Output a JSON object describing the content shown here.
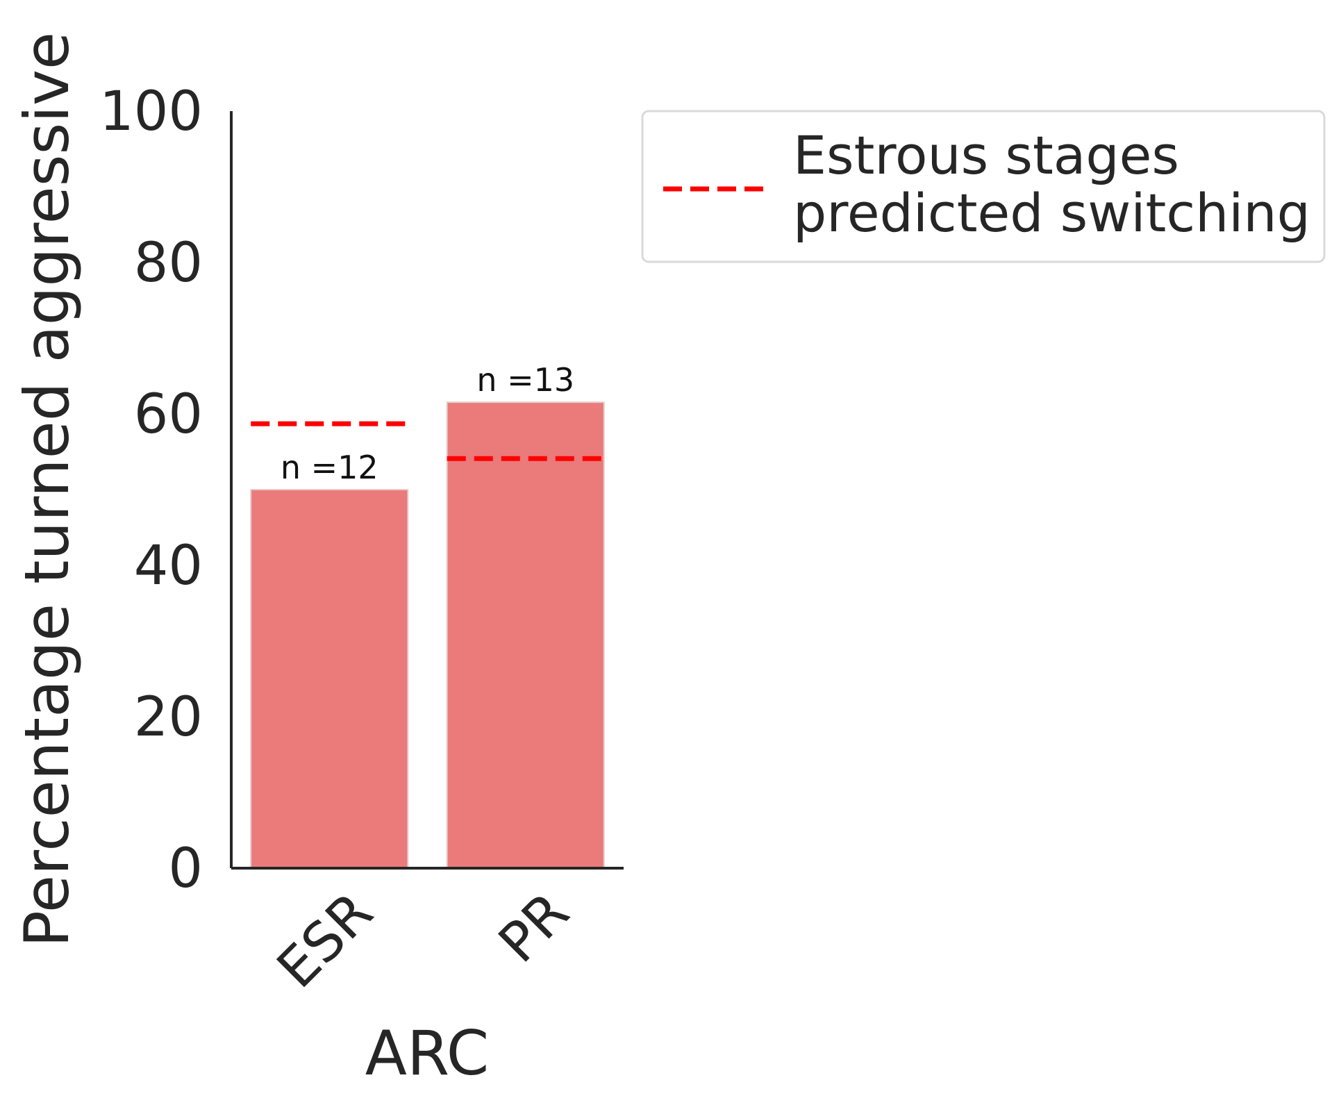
{
  "chart_data": {
    "type": "bar",
    "categories": [
      "ESR",
      "PR"
    ],
    "values": [
      50.0,
      61.54
    ],
    "annotations": [
      "n =12",
      "n =13"
    ],
    "reference_lines": [
      58.7,
      54.1
    ],
    "xlabel": "ARC",
    "ylabel": "Percentage turned aggressive",
    "ylim": [
      0,
      100
    ],
    "yticks": [
      "0",
      "20",
      "40",
      "60",
      "80",
      "100"
    ],
    "legend": {
      "position": "upper-right-outside",
      "entries": [
        {
          "lines": [
            "Estrous stages",
            "predicted switching"
          ],
          "style": "dashed"
        }
      ]
    },
    "grid": false,
    "colors": {
      "bar": "#eb7a7a",
      "bar_edge": "#e6c9c9",
      "reference_line": "#ff0000",
      "axis": "#262626"
    }
  }
}
